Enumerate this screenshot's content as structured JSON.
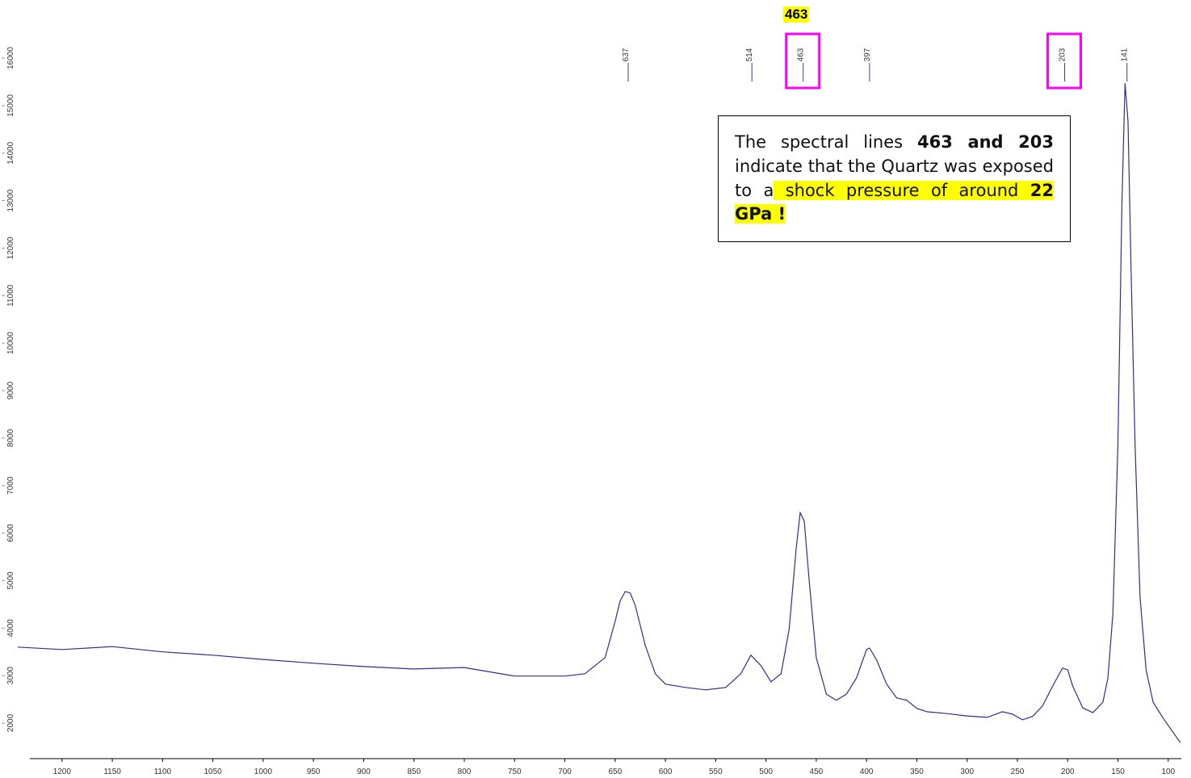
{
  "chart_data": {
    "type": "line",
    "x": [
      1244,
      1200,
      1150,
      1100,
      1050,
      1000,
      950,
      900,
      850,
      800,
      750,
      700,
      680,
      660,
      650,
      645,
      640,
      635,
      630,
      620,
      610,
      600,
      580,
      560,
      540,
      525,
      515,
      505,
      495,
      485,
      477,
      470,
      466,
      462,
      457,
      450,
      440,
      430,
      420,
      410,
      400,
      397,
      390,
      380,
      370,
      360,
      350,
      340,
      320,
      300,
      280,
      265,
      255,
      245,
      235,
      225,
      215,
      205,
      200,
      195,
      185,
      175,
      165,
      160,
      155,
      150,
      146,
      143,
      140,
      137,
      133,
      128,
      122,
      115,
      105,
      95,
      88
    ],
    "series": [
      {
        "color": "#2e2e90",
        "values": [
          3600,
          3550,
          3610,
          3500,
          3430,
          3340,
          3260,
          3190,
          3140,
          3170,
          2990,
          2990,
          3040,
          3380,
          4140,
          4570,
          4770,
          4740,
          4480,
          3630,
          3040,
          2820,
          2750,
          2700,
          2750,
          3040,
          3430,
          3210,
          2870,
          3040,
          3970,
          5670,
          6430,
          6260,
          4990,
          3380,
          2610,
          2480,
          2610,
          2950,
          3550,
          3580,
          3330,
          2820,
          2530,
          2480,
          2310,
          2240,
          2200,
          2150,
          2120,
          2240,
          2190,
          2070,
          2140,
          2360,
          2780,
          3160,
          3120,
          2780,
          2320,
          2220,
          2440,
          2950,
          4310,
          7880,
          12970,
          15470,
          14670,
          11620,
          7880,
          4650,
          3120,
          2440,
          2100,
          1800,
          1590
        ]
      }
    ],
    "xlim": [
      1244,
      87
    ],
    "xticks": [
      1200,
      1150,
      1100,
      1050,
      1000,
      950,
      900,
      850,
      800,
      750,
      700,
      650,
      600,
      550,
      500,
      450,
      400,
      350,
      300,
      250,
      200,
      150,
      100
    ],
    "ylim": [
      1252,
      16374
    ],
    "yticks": [
      2000,
      3000,
      4000,
      5000,
      6000,
      7000,
      8000,
      9000,
      10000,
      11000,
      12000,
      13000,
      14000,
      15000,
      16000
    ],
    "peaks": [
      {
        "x": 637,
        "boxed": false
      },
      {
        "x": 514,
        "boxed": false
      },
      {
        "x": 463,
        "boxed": true
      },
      {
        "x": 397,
        "boxed": false
      },
      {
        "x": 203,
        "boxed": true
      },
      {
        "x": 141,
        "boxed": false
      }
    ],
    "peak_color": "#3a3aa0",
    "box_color": "#ff00ff",
    "callout": "463",
    "annotation": [
      "The spectral lines ",
      "463 and 203",
      " indicate that the Quartz was exposed to a",
      " shock pressure of around ",
      "22 GPa !"
    ]
  }
}
